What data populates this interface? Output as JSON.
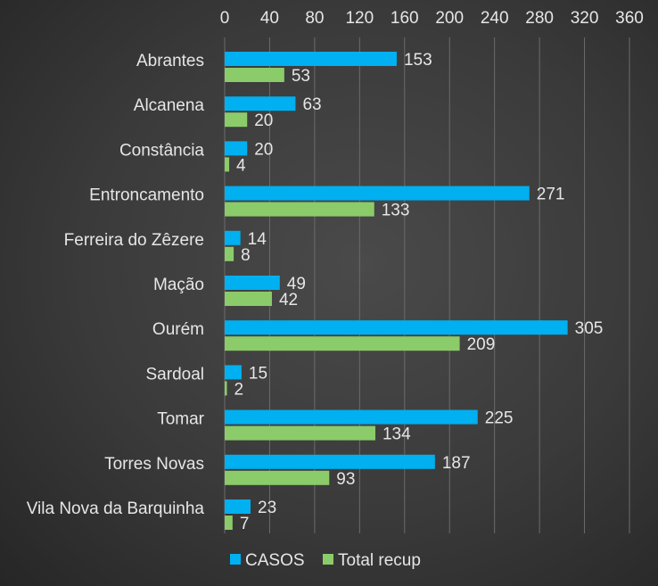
{
  "chart_data": {
    "type": "bar",
    "orientation": "horizontal",
    "categories": [
      "Abrantes",
      "Alcanena",
      "Constância",
      "Entroncamento",
      "Ferreira do Zêzere",
      "Mação",
      "Ourém",
      "Sardoal",
      "Tomar",
      "Torres Novas",
      "Vila Nova da Barquinha"
    ],
    "series": [
      {
        "name": "CASOS",
        "color": "#00b0f0",
        "values": [
          153,
          63,
          20,
          271,
          14,
          49,
          305,
          15,
          225,
          187,
          23
        ]
      },
      {
        "name": "Total recup",
        "color": "#8ccb6a",
        "values": [
          53,
          20,
          4,
          133,
          8,
          42,
          209,
          2,
          134,
          93,
          7
        ]
      }
    ],
    "xlim": [
      0,
      360
    ],
    "xticks": [
      0,
      40,
      80,
      120,
      160,
      200,
      240,
      280,
      320,
      360
    ],
    "axis_position": "top",
    "grid": true,
    "legend_position": "bottom"
  }
}
